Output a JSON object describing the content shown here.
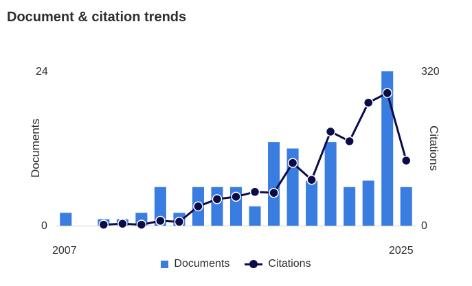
{
  "header": {
    "title": "Document & citation trends"
  },
  "chart_data": {
    "type": "bar",
    "title": "Document & citation trends",
    "x": [
      2007,
      2008,
      2009,
      2010,
      2011,
      2012,
      2013,
      2014,
      2015,
      2016,
      2017,
      2018,
      2019,
      2020,
      2021,
      2022,
      2023,
      2024,
      2025
    ],
    "x_tick_labels": [
      "2007",
      "2025"
    ],
    "y_left": {
      "label": "Documents",
      "lim": [
        0,
        24
      ],
      "ticks": [
        "0",
        "24"
      ]
    },
    "y_right": {
      "label": "Citations",
      "lim": [
        0,
        320
      ],
      "ticks": [
        "0",
        "320"
      ]
    },
    "series": [
      {
        "name": "Documents",
        "type": "bar",
        "axis": "left",
        "values": [
          2,
          0,
          1,
          1,
          2,
          6,
          2,
          6,
          6,
          6,
          3,
          13,
          12,
          7,
          13,
          6,
          7,
          24,
          6
        ]
      },
      {
        "name": "Citations",
        "type": "line",
        "axis": "right",
        "values": [
          null,
          null,
          2,
          4,
          2,
          10,
          8,
          40,
          55,
          60,
          70,
          68,
          130,
          95,
          195,
          175,
          255,
          275,
          135
        ]
      }
    ],
    "colors": {
      "documents": "#3a7de0",
      "citations": "#0b0b4a"
    },
    "legend": "bottom-center",
    "grid": false
  }
}
